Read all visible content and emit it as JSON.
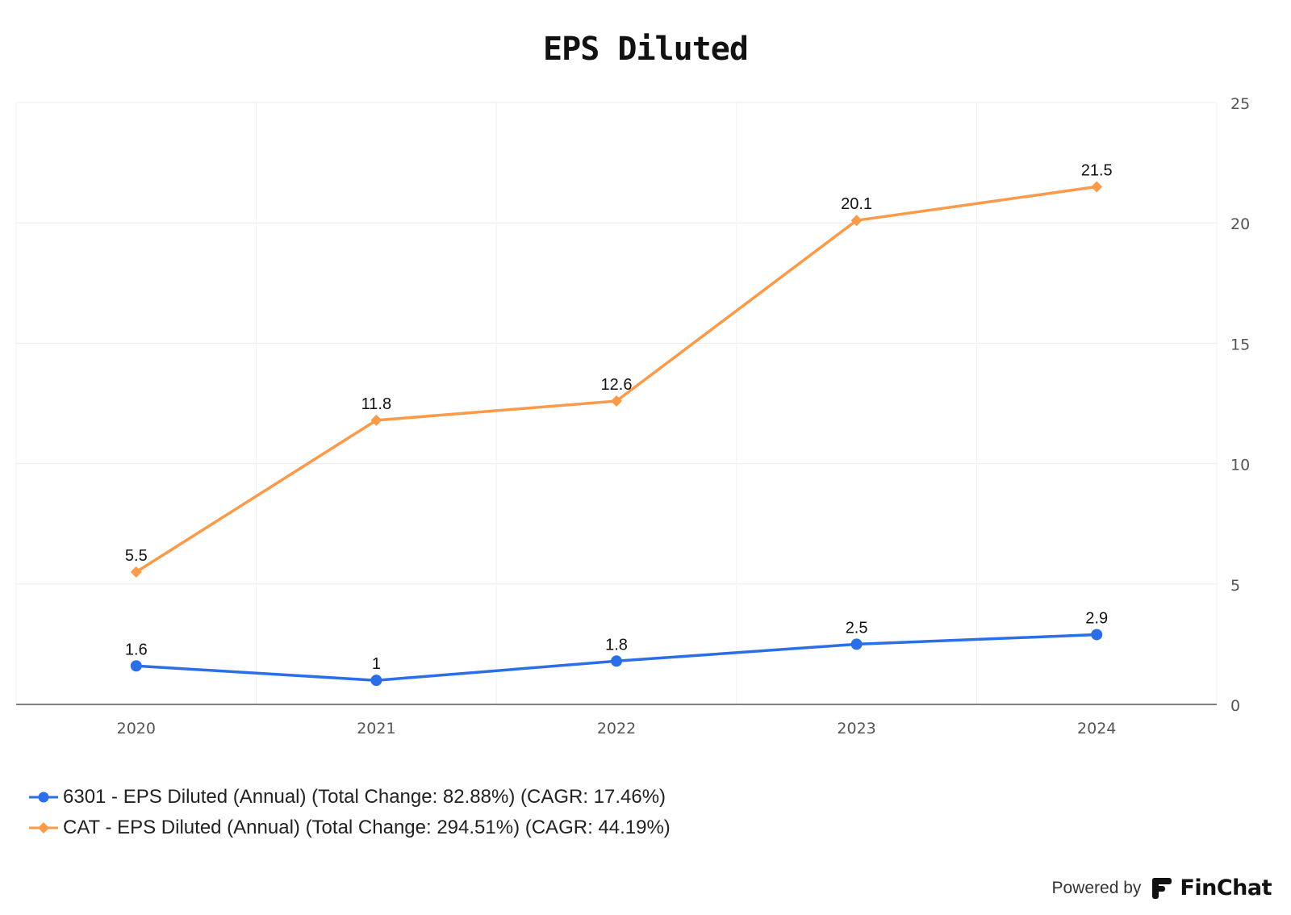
{
  "chart_data": {
    "type": "line",
    "title": "EPS Diluted",
    "categories": [
      "2020",
      "2021",
      "2022",
      "2023",
      "2024"
    ],
    "ylim": [
      0,
      25
    ],
    "yticks": [
      "0",
      "5",
      "10",
      "15",
      "20",
      "25"
    ],
    "y_axis_side": "right",
    "grid": true,
    "legend_position": "bottom-left",
    "series": [
      {
        "name": "6301 - EPS Diluted (Annual) (Total Change: 82.88%) (CAGR: 17.46%)",
        "values": [
          1.6,
          1.0,
          1.8,
          2.5,
          2.9
        ],
        "labels": [
          "1.6",
          "1",
          "1.8",
          "2.5",
          "2.9"
        ],
        "color": "#2a6ee8",
        "marker": "circle"
      },
      {
        "name": "CAT - EPS Diluted (Annual) (Total Change: 294.51%) (CAGR: 44.19%)",
        "values": [
          5.5,
          11.8,
          12.6,
          20.1,
          21.5
        ],
        "labels": [
          "5.5",
          "11.8",
          "12.6",
          "20.1",
          "21.5"
        ],
        "color": "#fb9a4a",
        "marker": "diamond"
      }
    ]
  },
  "footer": {
    "powered_by": "Powered by",
    "brand": "FinChat",
    "logo_icon": "finchat-logo-icon"
  }
}
